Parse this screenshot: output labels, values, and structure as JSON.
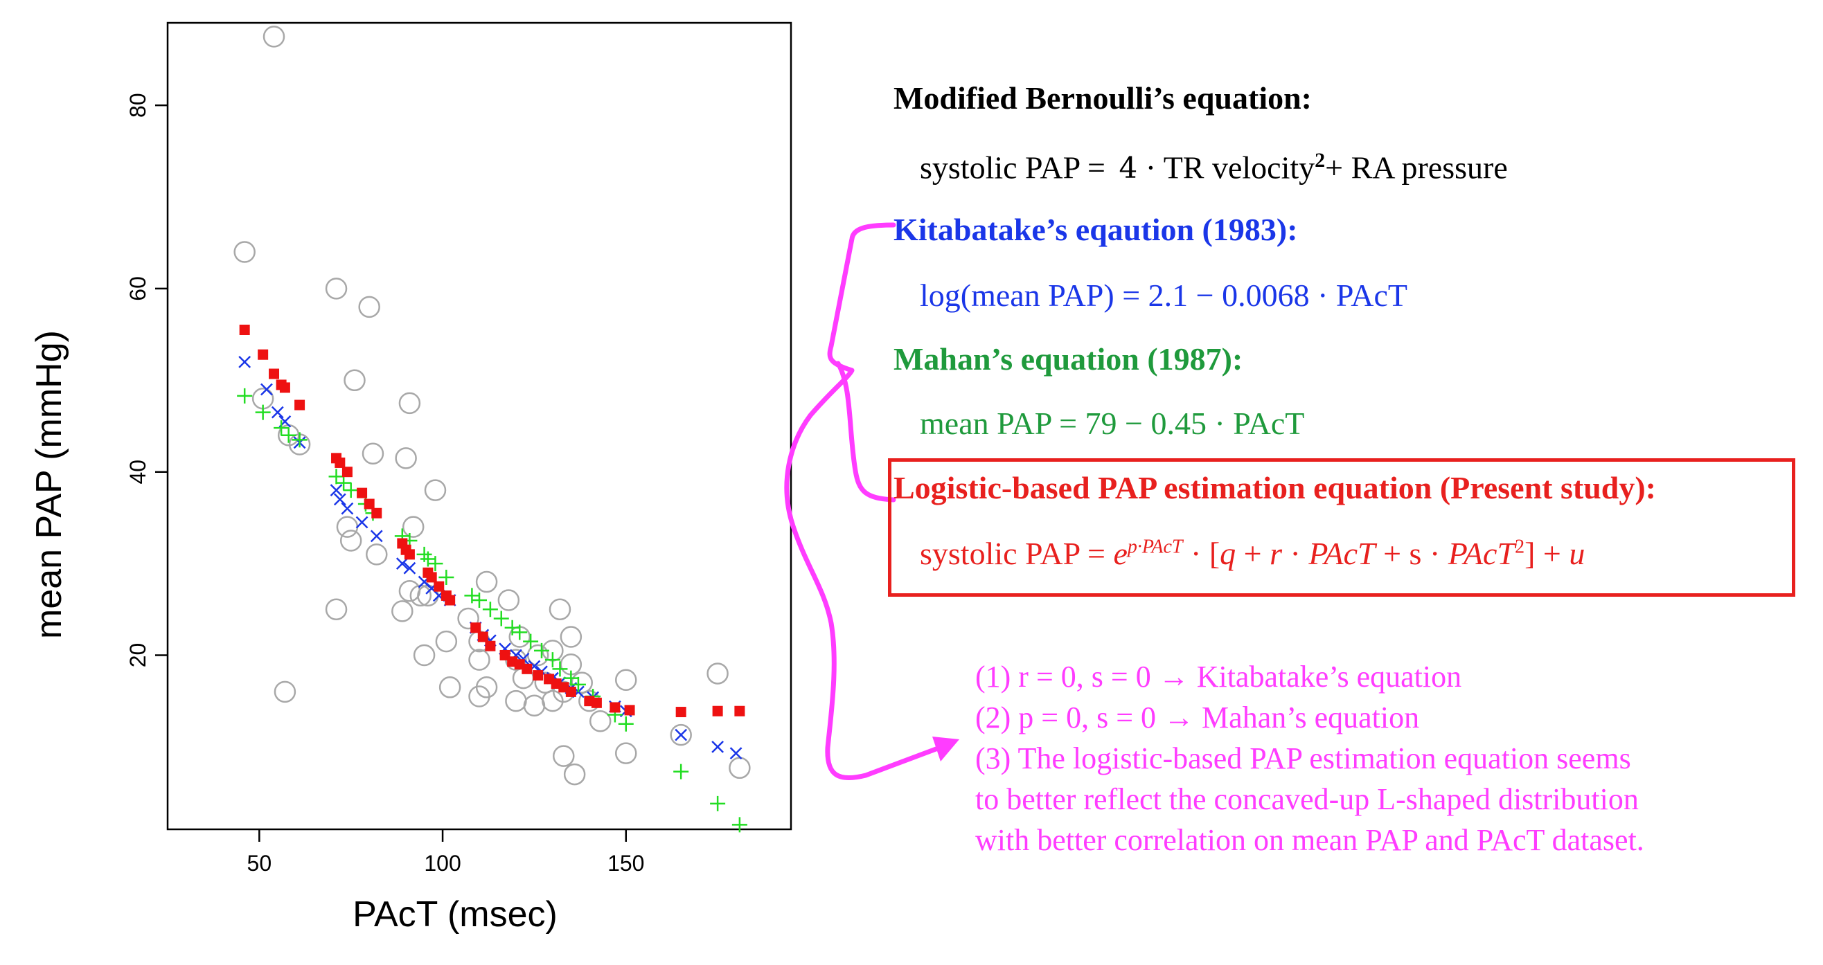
{
  "colors": {
    "observed": "#a8a8a8",
    "kitabatake": "#1a36e8",
    "mahan": "#22dd22",
    "logistic": "#ee1111",
    "annotation": "#ff3cff"
  },
  "chart_data": {
    "type": "scatter",
    "xlabel": "PAcT (msec)",
    "ylabel": "mean PAP (mmHg)",
    "xlim": [
      25,
      195
    ],
    "ylim": [
      1,
      89
    ],
    "xticks": [
      50,
      100,
      150
    ],
    "yticks": [
      20,
      40,
      60,
      80
    ],
    "series": [
      {
        "marker": "open-circle",
        "points": [
          [
            54,
            87.5
          ],
          [
            46,
            64
          ],
          [
            71,
            60
          ],
          [
            80,
            58
          ],
          [
            76,
            50
          ],
          [
            91,
            47.5
          ],
          [
            51,
            48
          ],
          [
            58,
            44
          ],
          [
            61,
            43
          ],
          [
            81,
            42
          ],
          [
            90,
            41.5
          ],
          [
            98,
            38
          ],
          [
            74,
            34
          ],
          [
            75,
            32.5
          ],
          [
            82,
            31
          ],
          [
            92,
            34
          ],
          [
            89,
            24.8
          ],
          [
            91,
            27
          ],
          [
            94,
            26.5
          ],
          [
            71,
            25
          ],
          [
            107,
            24
          ],
          [
            96,
            26.5
          ],
          [
            112,
            28
          ],
          [
            118,
            26
          ],
          [
            121,
            22
          ],
          [
            110,
            21.5
          ],
          [
            120,
            19.5
          ],
          [
            101,
            21.5
          ],
          [
            95,
            20
          ],
          [
            110,
            19.5
          ],
          [
            132,
            25
          ],
          [
            135,
            22
          ],
          [
            126,
            20
          ],
          [
            130,
            20.5
          ],
          [
            135,
            19
          ],
          [
            138,
            17
          ],
          [
            122,
            17.5
          ],
          [
            128,
            17
          ],
          [
            133,
            16
          ],
          [
            120,
            15
          ],
          [
            112,
            16.5
          ],
          [
            110,
            15.5
          ],
          [
            102,
            16.5
          ],
          [
            125,
            14.5
          ],
          [
            130,
            15
          ],
          [
            140,
            15
          ],
          [
            143,
            12.8
          ],
          [
            150,
            17.3
          ],
          [
            150,
            9.3
          ],
          [
            133,
            9
          ],
          [
            136,
            7
          ],
          [
            165,
            11.3
          ],
          [
            175,
            18
          ],
          [
            181,
            7.7
          ],
          [
            57,
            16
          ]
        ]
      },
      {
        "name": "Kitabatake",
        "marker": "x",
        "points": [
          [
            46,
            52
          ],
          [
            52,
            49
          ],
          [
            55,
            46.5
          ],
          [
            57,
            45.5
          ],
          [
            61,
            43.2
          ],
          [
            71,
            38
          ],
          [
            72,
            37
          ],
          [
            74,
            36
          ],
          [
            78,
            34.5
          ],
          [
            82,
            33
          ],
          [
            89,
            30
          ],
          [
            91,
            29.5
          ],
          [
            95,
            28
          ],
          [
            97,
            27.3
          ],
          [
            99,
            26.5
          ],
          [
            102,
            26
          ],
          [
            109,
            23
          ],
          [
            111,
            22.2
          ],
          [
            113,
            21.6
          ],
          [
            117,
            20.7
          ],
          [
            120,
            20
          ],
          [
            122,
            19.6
          ],
          [
            125,
            18.8
          ],
          [
            127,
            18.2
          ],
          [
            130,
            17.5
          ],
          [
            132,
            17
          ],
          [
            135,
            16.4
          ],
          [
            137,
            16
          ],
          [
            141,
            15.4
          ],
          [
            147,
            14.4
          ],
          [
            150,
            13.9
          ],
          [
            165,
            11.3
          ],
          [
            175,
            10
          ],
          [
            180,
            9.3
          ]
        ]
      },
      {
        "name": "Mahan",
        "marker": "+",
        "points": [
          [
            46,
            48.3
          ],
          [
            51,
            46.5
          ],
          [
            56,
            44.8
          ],
          [
            58,
            44
          ],
          [
            61,
            43.5
          ],
          [
            71,
            39.5
          ],
          [
            73,
            38.8
          ],
          [
            75,
            38
          ],
          [
            79,
            36.5
          ],
          [
            81,
            35.5
          ],
          [
            89,
            33
          ],
          [
            91,
            32.5
          ],
          [
            95,
            31
          ],
          [
            96,
            30.5
          ],
          [
            98,
            30
          ],
          [
            101,
            28.5
          ],
          [
            108,
            26.5
          ],
          [
            110,
            26
          ],
          [
            113,
            25
          ],
          [
            116,
            24
          ],
          [
            119,
            23
          ],
          [
            121,
            22.5
          ],
          [
            124,
            21.5
          ],
          [
            127,
            20.5
          ],
          [
            130,
            19.5
          ],
          [
            132,
            18.5
          ],
          [
            135,
            17.5
          ],
          [
            137,
            16.8
          ],
          [
            141,
            15.5
          ],
          [
            147,
            13.5
          ],
          [
            150,
            12.5
          ],
          [
            165,
            7.3
          ],
          [
            175,
            3.8
          ],
          [
            181,
            1.5
          ]
        ]
      },
      {
        "name": "Logistic",
        "marker": "filled-square",
        "points": [
          [
            46,
            55.5
          ],
          [
            51,
            52.8
          ],
          [
            54,
            50.7
          ],
          [
            56,
            49.5
          ],
          [
            57,
            49.2
          ],
          [
            61,
            47.3
          ],
          [
            71,
            41.5
          ],
          [
            72,
            41
          ],
          [
            74,
            40
          ],
          [
            78,
            37.7
          ],
          [
            80,
            36.5
          ],
          [
            82,
            35.5
          ],
          [
            89,
            32.2
          ],
          [
            90,
            31.5
          ],
          [
            91,
            31
          ],
          [
            96,
            29
          ],
          [
            97,
            28.5
          ],
          [
            99,
            27.5
          ],
          [
            101,
            26.5
          ],
          [
            102,
            26
          ],
          [
            109,
            23
          ],
          [
            111,
            22
          ],
          [
            113,
            21
          ],
          [
            117,
            20
          ],
          [
            119,
            19.3
          ],
          [
            121,
            19
          ],
          [
            123,
            18.5
          ],
          [
            126,
            17.8
          ],
          [
            129,
            17.4
          ],
          [
            131,
            16.9
          ],
          [
            133,
            16.5
          ],
          [
            135,
            16
          ],
          [
            140,
            15
          ],
          [
            142,
            14.8
          ],
          [
            147,
            14.3
          ],
          [
            151,
            14
          ],
          [
            165,
            13.8
          ],
          [
            175,
            13.9
          ],
          [
            181,
            13.9
          ]
        ]
      }
    ]
  },
  "equations": {
    "bernoulli_header": "Modified Bernoulli’s equation:",
    "bernoulli_formula_a": "systolic PAP = ",
    "bernoulli_coef": "4",
    "bernoulli_formula_b": " · TR velocity",
    "bernoulli_sup": "2",
    "bernoulli_formula_c": "+ RA pressure",
    "kitabatake_header": "Kitabatake’s eqaution (1983):",
    "kitabatake_formula_a": "log(mean PAP) = 2.1 − 0.0068",
    "kitabatake_formula_b": " · PAcT",
    "mahan_header": "Mahan’s equation (1987):",
    "mahan_formula_a": "mean PAP = 79 −  0.45",
    "mahan_formula_b": " · PAcT",
    "logistic_header": "Logistic-based PAP estimation equation (Present study):",
    "logistic_formula_a": "systolic PAP = ",
    "logistic_e": "e",
    "logistic_exp": "p·PAcT",
    "logistic_formula_b": " · [",
    "logistic_q": "q",
    "logistic_plus1": " + ",
    "logistic_r": "r",
    "logistic_dot1": " · ",
    "logistic_pact1": "PAcT",
    "logistic_plus2": " + s · ",
    "logistic_pact2": "PAcT",
    "logistic_sq": "2",
    "logistic_formula_c": "] +  ",
    "logistic_u": "u"
  },
  "notes": [
    "(1) r = 0, s = 0 → Kitabatake’s equation",
    "(2) p = 0, s = 0 → Mahan’s equation",
    "(3) The logistic-based PAP estimation equation seems",
    "to better reflect the concaved-up L-shaped distribution",
    "with better correlation on mean PAP and PAcT dataset."
  ]
}
